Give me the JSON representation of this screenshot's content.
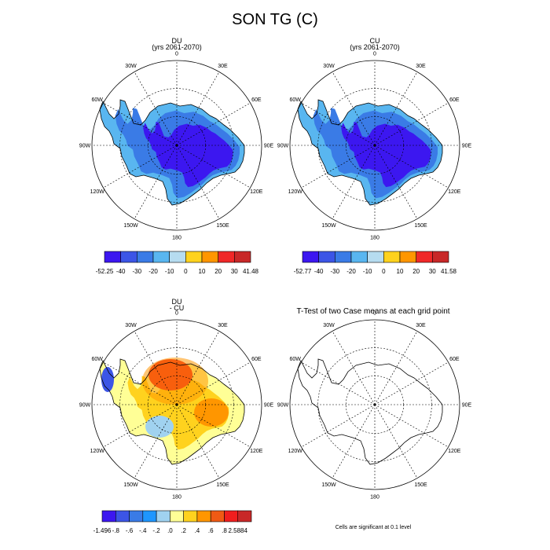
{
  "figure": {
    "title": "SON TG (C)",
    "panels": [
      {
        "name": "DU",
        "subtitle": "(yrs 2061-2070)"
      },
      {
        "name": "CU",
        "subtitle": "(yrs 2061-2070)"
      },
      {
        "name": "DU",
        "subtitle": "- CU"
      },
      {
        "name": "T-Test of two Case means at each grid point",
        "subtitle": ""
      }
    ],
    "significance_note": "Cells are significant at 0.1 level"
  },
  "map_labels": {
    "lon": [
      "0",
      "30E",
      "60E",
      "90E",
      "120E",
      "150E",
      "180",
      "150W",
      "120W",
      "90W",
      "60W",
      "30W"
    ]
  },
  "colorbars": [
    {
      "ticks": [
        "-52.25",
        "-40",
        "-30",
        "-20",
        "-10",
        "0",
        "10",
        "20",
        "30",
        "41.48"
      ],
      "colors": [
        "#3c17f0",
        "#3c55e6",
        "#3a7be6",
        "#59b6f0",
        "#b6dcf0",
        "#ffd21e",
        "#ff9600",
        "#f02828",
        "#c82828"
      ]
    },
    {
      "ticks": [
        "-52.77",
        "-40",
        "-30",
        "-20",
        "-10",
        "0",
        "10",
        "20",
        "30",
        "41.58"
      ],
      "colors": [
        "#3c17f0",
        "#3c55e6",
        "#3a7be6",
        "#59b6f0",
        "#b6dcf0",
        "#ffd21e",
        "#ff9600",
        "#f02828",
        "#c82828"
      ]
    },
    {
      "ticks": [
        "-1.496",
        "-.8",
        "-.6",
        "-.4",
        "-.2",
        ".0",
        ".2",
        ".4",
        ".6",
        ".8",
        "2.5884"
      ],
      "colors": [
        "#3c17f0",
        "#3c55e6",
        "#3a7be6",
        "#1e96ff",
        "#a0d2f0",
        "#ffff96",
        "#ffd21e",
        "#ff9600",
        "#f05a14",
        "#f01e1e",
        "#c82828"
      ]
    }
  ],
  "colors": {
    "field_cold": "#3c17f0",
    "field_mid": "#3a7be6",
    "field_edge": "#59b6f0",
    "diff_warm": "#f01e1e",
    "diff_light": "#ffff96"
  }
}
